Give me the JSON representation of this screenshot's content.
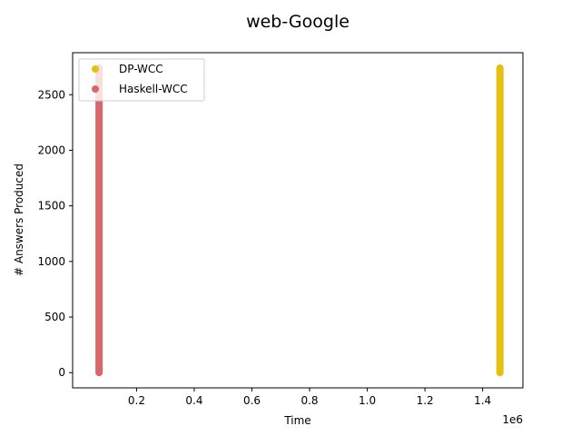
{
  "chart_data": {
    "type": "scatter",
    "title": "web-Google",
    "xlabel": "Time",
    "ylabel": "# Answers Produced",
    "x_offset_text": "1e6",
    "xlim": [
      -0.0217,
      1.5396
    ],
    "ylim": [
      -137,
      2878
    ],
    "x_ticks": [
      0.2,
      0.4,
      0.6,
      0.8,
      1.0,
      1.2,
      1.4
    ],
    "x_tick_labels": [
      "0.2",
      "0.4",
      "0.6",
      "0.8",
      "1.0",
      "1.2",
      "1.4"
    ],
    "y_ticks": [
      0,
      500,
      1000,
      1500,
      2000,
      2500
    ],
    "y_tick_labels": [
      "0",
      "500",
      "1000",
      "1500",
      "2000",
      "2500"
    ],
    "grid": false,
    "legend": "top-left",
    "series": [
      {
        "name": "DP-WCC",
        "color": "#e6c00e",
        "x_value": 1.46,
        "y_range": [
          0,
          2740
        ]
      },
      {
        "name": "Haskell-WCC",
        "color": "#d9666a",
        "x_value": 0.07,
        "y_range": [
          0,
          2740
        ]
      }
    ]
  }
}
